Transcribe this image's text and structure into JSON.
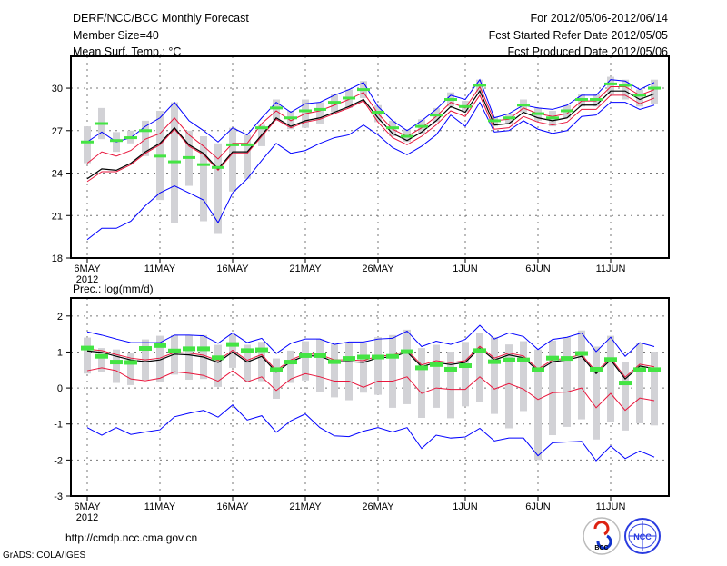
{
  "header": {
    "title": "DERF/NCC/BCC Monthly Forecast",
    "member_size": "Member Size=40",
    "variable": "Mean Surf. Temp.: °C",
    "period": "For 2012/05/06-2012/06/14",
    "started": "Fcst Started Refer Date 2012/05/05",
    "produced": "Fcst Produced Date 2012/05/06"
  },
  "footer": {
    "url": "http://cmdp.ncc.cma.gov.cn",
    "credit": "GrADS: COLA/IGES",
    "logo_bcc": "BCC",
    "logo_ncc": "NCC"
  },
  "colors": {
    "envelope": "#0000ff",
    "spread": "#e8163c",
    "mean": "#000000",
    "median": "#44e444",
    "range": "#d2d2d6"
  },
  "chart_data": [
    {
      "type": "line",
      "title": "Mean Surf. Temp.: °C",
      "ylim": [
        18,
        32.25
      ],
      "yticks": [
        18,
        21,
        24,
        27,
        30
      ],
      "xtick_labels": [
        {
          "day": 0,
          "label": "6MAY"
        },
        {
          "day": 5,
          "label": "11MAY"
        },
        {
          "day": 10,
          "label": "16MAY"
        },
        {
          "day": 15,
          "label": "21MAY"
        },
        {
          "day": 20,
          "label": "26MAY"
        },
        {
          "day": 26,
          "label": "1JUN"
        },
        {
          "day": 31,
          "label": "6JUN"
        },
        {
          "day": 36,
          "label": "11JUN"
        }
      ],
      "year_label": "2012",
      "grid": true,
      "series": {
        "max": [
          26.2,
          26.9,
          26.2,
          26.5,
          27.3,
          27.9,
          29.0,
          27.7,
          27.0,
          26.2,
          27.2,
          26.7,
          27.9,
          29.0,
          28.3,
          28.9,
          29.0,
          29.5,
          29.9,
          30.4,
          28.7,
          27.7,
          27.0,
          27.7,
          28.5,
          29.5,
          29.2,
          30.6,
          27.9,
          28.2,
          28.8,
          28.6,
          28.5,
          28.8,
          29.5,
          29.5,
          30.6,
          30.5,
          29.9,
          30.4
        ],
        "min": [
          19.3,
          20.1,
          20.1,
          20.6,
          21.7,
          22.6,
          23.1,
          22.6,
          22.1,
          20.5,
          22.6,
          23.6,
          24.9,
          26.1,
          25.4,
          25.6,
          26.1,
          26.5,
          26.7,
          27.4,
          26.7,
          25.8,
          25.3,
          25.9,
          26.7,
          28.1,
          27.3,
          29.0,
          26.9,
          27.0,
          27.7,
          27.1,
          26.8,
          27.0,
          28.0,
          28.1,
          29.0,
          29.0,
          28.5,
          28.8
        ],
        "upper": [
          24.7,
          25.5,
          25.2,
          25.6,
          26.4,
          26.8,
          27.9,
          26.7,
          25.9,
          25.0,
          26.1,
          26.1,
          27.5,
          28.4,
          27.7,
          28.2,
          28.4,
          28.8,
          29.2,
          29.7,
          28.2,
          27.1,
          26.6,
          27.2,
          28.0,
          29.0,
          28.6,
          30.1,
          27.7,
          27.8,
          28.6,
          28.2,
          28.0,
          28.2,
          29.1,
          29.1,
          30.1,
          30.1,
          29.5,
          29.9
        ],
        "lower": [
          23.4,
          24.1,
          24.1,
          24.6,
          25.4,
          26.0,
          27.1,
          25.9,
          25.3,
          24.2,
          25.4,
          25.4,
          26.6,
          27.8,
          27.2,
          27.6,
          27.8,
          28.2,
          28.6,
          29.1,
          27.6,
          26.5,
          26.0,
          26.6,
          27.4,
          28.4,
          28.0,
          29.5,
          27.1,
          27.2,
          28.0,
          27.6,
          27.4,
          27.6,
          28.5,
          28.5,
          29.5,
          29.5,
          28.9,
          29.3
        ],
        "mean": [
          23.6,
          24.3,
          24.2,
          24.7,
          25.5,
          26.1,
          27.2,
          26.0,
          25.4,
          24.3,
          25.5,
          25.5,
          26.7,
          27.9,
          27.3,
          27.7,
          27.9,
          28.3,
          28.7,
          29.2,
          27.9,
          26.8,
          26.3,
          26.9,
          27.7,
          28.7,
          28.3,
          29.8,
          27.4,
          27.5,
          28.3,
          27.9,
          27.7,
          27.9,
          28.8,
          28.8,
          29.8,
          29.8,
          29.2,
          29.6
        ],
        "median": [
          26.2,
          27.5,
          26.3,
          26.5,
          27.0,
          25.2,
          24.8,
          25.1,
          24.6,
          24.4,
          26.0,
          26.0,
          27.2,
          28.6,
          27.9,
          28.4,
          28.5,
          29.0,
          29.3,
          29.9,
          28.3,
          27.2,
          26.6,
          27.3,
          28.1,
          29.2,
          28.7,
          30.2,
          27.7,
          27.9,
          28.8,
          28.2,
          27.9,
          28.4,
          29.2,
          29.2,
          30.3,
          30.2,
          29.5,
          30.0
        ],
        "box_high": [
          27.3,
          28.6,
          26.9,
          27.0,
          27.7,
          28.4,
          29.0,
          27.0,
          26.6,
          26.1,
          27.2,
          26.7,
          27.4,
          29.2,
          28.4,
          29.2,
          29.0,
          29.6,
          29.9,
          30.5,
          28.8,
          27.7,
          27.1,
          27.8,
          28.6,
          29.7,
          29.1,
          30.6,
          28.0,
          28.2,
          29.2,
          28.6,
          28.4,
          28.8,
          29.6,
          29.6,
          30.8,
          30.6,
          29.9,
          30.6
        ],
        "box_low": [
          24.7,
          26.4,
          25.5,
          26.1,
          25.2,
          22.1,
          20.5,
          23.1,
          20.6,
          19.7,
          22.7,
          23.6,
          25.9,
          27.7,
          27.1,
          27.2,
          27.5,
          28.3,
          28.6,
          29.3,
          27.6,
          26.6,
          26.2,
          26.8,
          27.6,
          28.7,
          28.3,
          29.7,
          27.3,
          27.5,
          28.3,
          27.7,
          27.3,
          27.9,
          28.7,
          28.7,
          29.6,
          29.2,
          28.7,
          28.9
        ]
      }
    },
    {
      "type": "line",
      "title": "Prec.: log(mm/d)",
      "ylim": [
        -3,
        2.5
      ],
      "yticks": [
        -3,
        -2,
        -1,
        0,
        1,
        2
      ],
      "xtick_labels": [
        {
          "day": 0,
          "label": "6MAY"
        },
        {
          "day": 5,
          "label": "11MAY"
        },
        {
          "day": 10,
          "label": "16MAY"
        },
        {
          "day": 15,
          "label": "21MAY"
        },
        {
          "day": 20,
          "label": "26MAY"
        },
        {
          "day": 26,
          "label": "1JUN"
        },
        {
          "day": 31,
          "label": "6JUN"
        },
        {
          "day": 36,
          "label": "11JUN"
        }
      ],
      "year_label": "2012",
      "grid": true,
      "series": {
        "max": [
          1.56,
          1.47,
          1.36,
          1.26,
          1.26,
          1.26,
          1.47,
          1.47,
          1.45,
          1.24,
          1.53,
          1.26,
          1.38,
          0.96,
          1.24,
          1.36,
          1.36,
          1.21,
          1.28,
          1.28,
          1.36,
          1.38,
          1.58,
          1.15,
          1.3,
          1.21,
          1.35,
          1.74,
          1.36,
          1.53,
          1.43,
          1.07,
          1.35,
          1.41,
          1.53,
          1.01,
          1.41,
          0.88,
          1.26,
          1.15
        ],
        "min": [
          -1.1,
          -1.31,
          -1.1,
          -1.29,
          -1.22,
          -1.16,
          -0.8,
          -0.7,
          -0.62,
          -0.81,
          -0.47,
          -0.89,
          -0.77,
          -1.23,
          -0.91,
          -0.72,
          -1.1,
          -1.33,
          -1.35,
          -1.2,
          -1.1,
          -1.22,
          -1.1,
          -1.68,
          -1.31,
          -1.39,
          -1.36,
          -1.12,
          -1.47,
          -1.39,
          -1.39,
          -1.88,
          -1.52,
          -1.5,
          -1.48,
          -2.02,
          -1.61,
          -1.96,
          -1.75,
          -1.92
        ],
        "upper": [
          1.08,
          1.04,
          0.93,
          0.83,
          0.78,
          0.83,
          0.99,
          0.97,
          0.91,
          0.76,
          1.05,
          0.77,
          0.93,
          0.49,
          0.78,
          0.95,
          0.93,
          0.78,
          0.78,
          0.76,
          0.89,
          0.91,
          1.05,
          0.64,
          0.76,
          0.7,
          0.76,
          1.16,
          0.83,
          0.97,
          0.89,
          0.53,
          0.78,
          0.83,
          0.93,
          0.45,
          0.83,
          0.3,
          0.66,
          0.59
        ],
        "lower": [
          0.48,
          0.56,
          0.48,
          0.25,
          0.2,
          0.27,
          0.45,
          0.41,
          0.35,
          0.19,
          0.48,
          0.17,
          0.31,
          -0.07,
          0.25,
          0.4,
          0.31,
          0.19,
          0.19,
          0.02,
          0.19,
          0.19,
          0.31,
          -0.15,
          0.0,
          -0.04,
          -0.04,
          0.31,
          -0.03,
          0.12,
          -0.03,
          -0.32,
          -0.13,
          -0.11,
          0.0,
          -0.55,
          -0.15,
          -0.62,
          -0.28,
          -0.35
        ],
        "mean": [
          1.03,
          0.99,
          0.88,
          0.78,
          0.73,
          0.78,
          0.94,
          0.92,
          0.86,
          0.71,
          1.0,
          0.72,
          0.88,
          0.44,
          0.73,
          0.9,
          0.88,
          0.73,
          0.73,
          0.71,
          0.84,
          0.86,
          1.0,
          0.59,
          0.71,
          0.65,
          0.71,
          1.11,
          0.78,
          0.92,
          0.84,
          0.48,
          0.73,
          0.78,
          0.88,
          0.4,
          0.78,
          0.25,
          0.61,
          0.54
        ],
        "median": [
          1.11,
          0.88,
          0.72,
          0.71,
          1.1,
          1.18,
          1.03,
          1.09,
          1.09,
          0.84,
          1.21,
          1.04,
          1.06,
          0.51,
          0.72,
          0.9,
          0.9,
          0.73,
          0.82,
          0.86,
          0.86,
          0.88,
          1.01,
          0.56,
          0.65,
          0.52,
          0.62,
          1.04,
          0.73,
          0.78,
          0.78,
          0.51,
          0.83,
          0.82,
          0.96,
          0.52,
          0.79,
          0.14,
          0.51,
          0.51
        ],
        "box_high": [
          1.4,
          1.11,
          1.07,
          0.96,
          1.35,
          1.45,
          1.47,
          1.47,
          1.47,
          1.2,
          1.49,
          1.2,
          1.28,
          0.82,
          1.04,
          1.3,
          1.35,
          1.21,
          1.24,
          1.26,
          1.41,
          1.47,
          1.62,
          1.11,
          1.2,
          1.01,
          1.28,
          1.53,
          1.41,
          1.21,
          1.3,
          1.07,
          1.32,
          1.41,
          1.6,
          1.15,
          1.45,
          0.72,
          1.26,
          1.01
        ],
        "box_low": [
          0.4,
          0.44,
          0.14,
          0.08,
          0.23,
          0.17,
          0.37,
          0.23,
          0.25,
          0.03,
          0.56,
          0.17,
          0.19,
          -0.3,
          0.14,
          0.21,
          -0.11,
          -0.26,
          -0.34,
          -0.13,
          -0.19,
          -0.55,
          -0.45,
          -0.83,
          -0.55,
          -0.84,
          -0.51,
          -0.39,
          -0.72,
          -1.12,
          -0.64,
          -2.0,
          -1.31,
          -1.08,
          -0.87,
          -1.43,
          -0.95,
          -1.18,
          -0.98,
          -1.04
        ]
      }
    }
  ]
}
